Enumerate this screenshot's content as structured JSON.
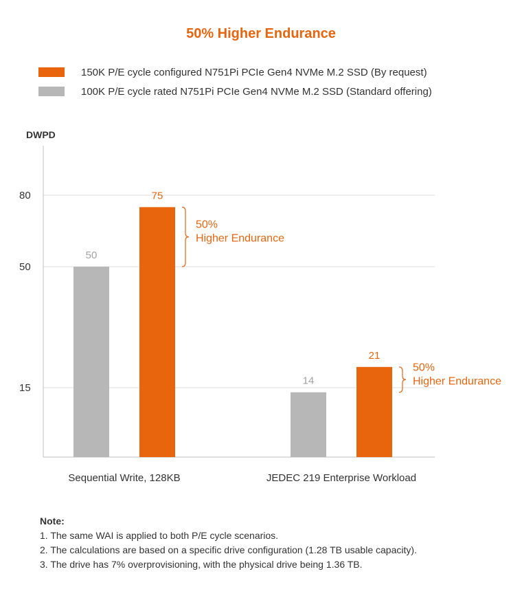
{
  "chart_data": {
    "type": "bar",
    "title": "50% Higher Endurance",
    "ylabel": "DWPD",
    "xlabel": "",
    "yticks": [
      15,
      50,
      80
    ],
    "categories": [
      "Sequential Write, 128KB",
      "JEDEC 219 Enterprise Workload"
    ],
    "series": [
      {
        "name": "100K P/E cycle rated N751Pi PCIe Gen4 NVMe M.2 SSD (Standard offering)",
        "values": [
          50,
          14
        ],
        "color": "#b7b7b7",
        "label_color": "#a3a3a3"
      },
      {
        "name": "150K P/E cycle configured N751Pi PCIe Gen4 NVMe M.2 SSD (By request)",
        "values": [
          75,
          21
        ],
        "color": "#e8650e",
        "label_color": "#e8650e"
      }
    ],
    "annotations": [
      {
        "line1": "50%",
        "line2": "Higher Endurance"
      },
      {
        "line1": "50%",
        "line2": "Higher Endurance"
      }
    ],
    "legend_order": [
      1,
      0
    ],
    "legend_position": "top-left",
    "grid": true
  },
  "notes": {
    "title": "Note:",
    "items": [
      "1. The same WAI is applied to both P/E cycle scenarios.",
      "2. The calculations are based on a specific drive configuration (1.28 TB usable capacity).",
      "3. The drive has 7% overprovisioning, with the physical drive being 1.36 TB."
    ]
  }
}
